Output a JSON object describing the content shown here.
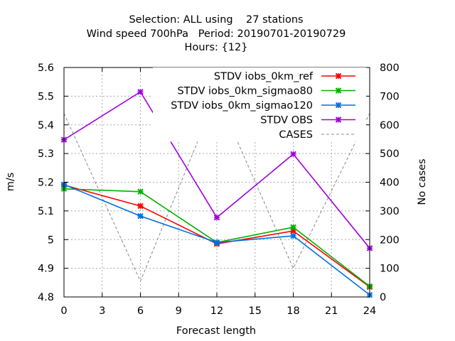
{
  "chart_data": {
    "type": "line",
    "title_lines": [
      "Selection: ALL using    27 stations",
      "Wind speed 700hPa   Period: 20190701-20190729",
      "Hours: {12}"
    ],
    "xlabel": "Forecast length",
    "ylabel": "m/s",
    "y2label": "No cases",
    "xlim": [
      0,
      24
    ],
    "ylim": [
      4.8,
      5.6
    ],
    "y2lim": [
      0,
      800
    ],
    "xticks": [
      "0",
      "3",
      "6",
      "9",
      "12",
      "15",
      "18",
      "21",
      "24"
    ],
    "yticks": [
      "4.8",
      "4.9",
      "5",
      "5.1",
      "5.2",
      "5.3",
      "5.4",
      "5.5",
      "5.6"
    ],
    "y2ticks": [
      "0",
      "100",
      "200",
      "300",
      "400",
      "500",
      "600",
      "700",
      "800"
    ],
    "grid": true,
    "legend_position": "top-right",
    "series": [
      {
        "name": "STDV iobs_0km_ref",
        "color": "#ff0000",
        "axis": "y1",
        "marker": "x",
        "x": [
          0,
          6,
          12,
          18,
          24
        ],
        "y": [
          5.19,
          5.117,
          4.985,
          5.03,
          4.835
        ]
      },
      {
        "name": "STDV iobs_0km_sigmao80",
        "color": "#00b000",
        "axis": "y1",
        "marker": "x",
        "x": [
          0,
          6,
          12,
          18,
          24
        ],
        "y": [
          5.177,
          5.167,
          4.99,
          5.043,
          4.837
        ]
      },
      {
        "name": "STDV iobs_0km_sigmao120",
        "color": "#0070e0",
        "axis": "y1",
        "marker": "x",
        "x": [
          0,
          6,
          12,
          18,
          24
        ],
        "y": [
          5.192,
          5.082,
          4.99,
          5.013,
          4.807
        ]
      },
      {
        "name": "STDV OBS",
        "color": "#a000e0",
        "axis": "y1",
        "marker": "x",
        "x": [
          0,
          6,
          12,
          18,
          24
        ],
        "y": [
          5.348,
          5.515,
          5.077,
          5.298,
          4.97
        ]
      },
      {
        "name": "CASES",
        "color": "#888888",
        "axis": "y2",
        "dashed": true,
        "x": [
          0,
          6,
          12,
          18,
          24
        ],
        "y": [
          640,
          55,
          705,
          100,
          640
        ]
      }
    ]
  }
}
